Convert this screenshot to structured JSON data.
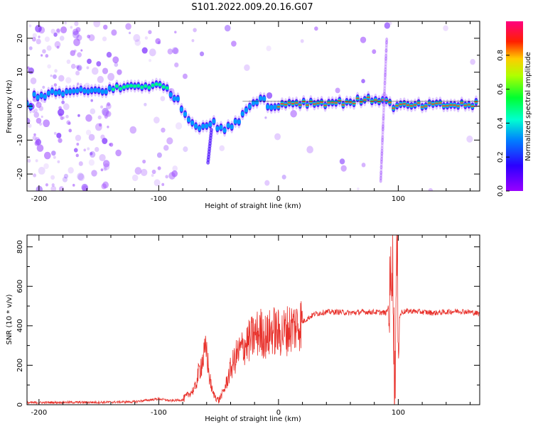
{
  "title": "S101.2022.009.20.16.G07",
  "chart_data": [
    {
      "type": "heatmap",
      "xlabel": "Height of straight line (km)",
      "ylabel": "Frequency (Hz)",
      "xlim": [
        -210,
        168
      ],
      "ylim": [
        -25,
        25
      ],
      "xticks": [
        -200,
        -100,
        0,
        100
      ],
      "yticks": [
        -20,
        -10,
        0,
        10,
        20
      ],
      "colorbar": {
        "label": "Normalized spectral amplitude",
        "range": [
          0.0,
          1.0
        ],
        "ticks": [
          "0.0",
          "0.2",
          "0.4",
          "0.6",
          "0.8"
        ],
        "colormap": "gist_rainbow (purple → blue → cyan → green → yellow → red → magenta)"
      },
      "signal_track": [
        {
          "x": -205,
          "y": 3
        },
        {
          "x": -180,
          "y": 4
        },
        {
          "x": -150,
          "y": 4.5
        },
        {
          "x": -120,
          "y": 6
        },
        {
          "x": -100,
          "y": 6
        },
        {
          "x": -92,
          "y": 5
        },
        {
          "x": -85,
          "y": 2
        },
        {
          "x": -75,
          "y": -4
        },
        {
          "x": -65,
          "y": -6
        },
        {
          "x": -55,
          "y": -5
        },
        {
          "x": -45,
          "y": -7
        },
        {
          "x": -35,
          "y": -5
        },
        {
          "x": -28,
          "y": -1
        },
        {
          "x": -20,
          "y": 1
        },
        {
          "x": -15,
          "y": 3
        },
        {
          "x": -5,
          "y": -1
        },
        {
          "x": 5,
          "y": 1
        },
        {
          "x": 50,
          "y": 1
        },
        {
          "x": 80,
          "y": 2
        },
        {
          "x": 88,
          "y": 2
        },
        {
          "x": 95,
          "y": 0
        },
        {
          "x": 168,
          "y": 0.5
        }
      ]
    },
    {
      "type": "line",
      "xlabel": "Height of straight line (km)",
      "ylabel": "SNR (10 * v/v)",
      "xlim": [
        -210,
        168
      ],
      "ylim": [
        0,
        860
      ],
      "xticks": [
        -200,
        -100,
        0,
        100
      ],
      "yticks": [
        0,
        200,
        400,
        600,
        800
      ],
      "series_color": "#e8302a",
      "series": [
        {
          "x": [
            -210,
            -180,
            -150,
            -120,
            -100,
            -90,
            -80,
            -70,
            -65,
            -60,
            -58,
            -55,
            -50,
            -45,
            -40,
            -35,
            -30,
            -25,
            -20,
            -15,
            -10,
            -5,
            0,
            5,
            10,
            15,
            20,
            25,
            30,
            40,
            50,
            60,
            70,
            80,
            90,
            93,
            95,
            97,
            99,
            100,
            103,
            110,
            120,
            130,
            140,
            150,
            160,
            168
          ],
          "y": [
            10,
            12,
            12,
            15,
            30,
            20,
            25,
            80,
            200,
            280,
            150,
            60,
            20,
            80,
            180,
            250,
            290,
            320,
            350,
            370,
            340,
            380,
            360,
            370,
            390,
            400,
            420,
            440,
            460,
            470,
            470,
            465,
            470,
            470,
            465,
            520,
            820,
            90,
            760,
            430,
            470,
            475,
            470,
            465,
            470,
            475,
            470,
            460
          ]
        }
      ]
    }
  ]
}
